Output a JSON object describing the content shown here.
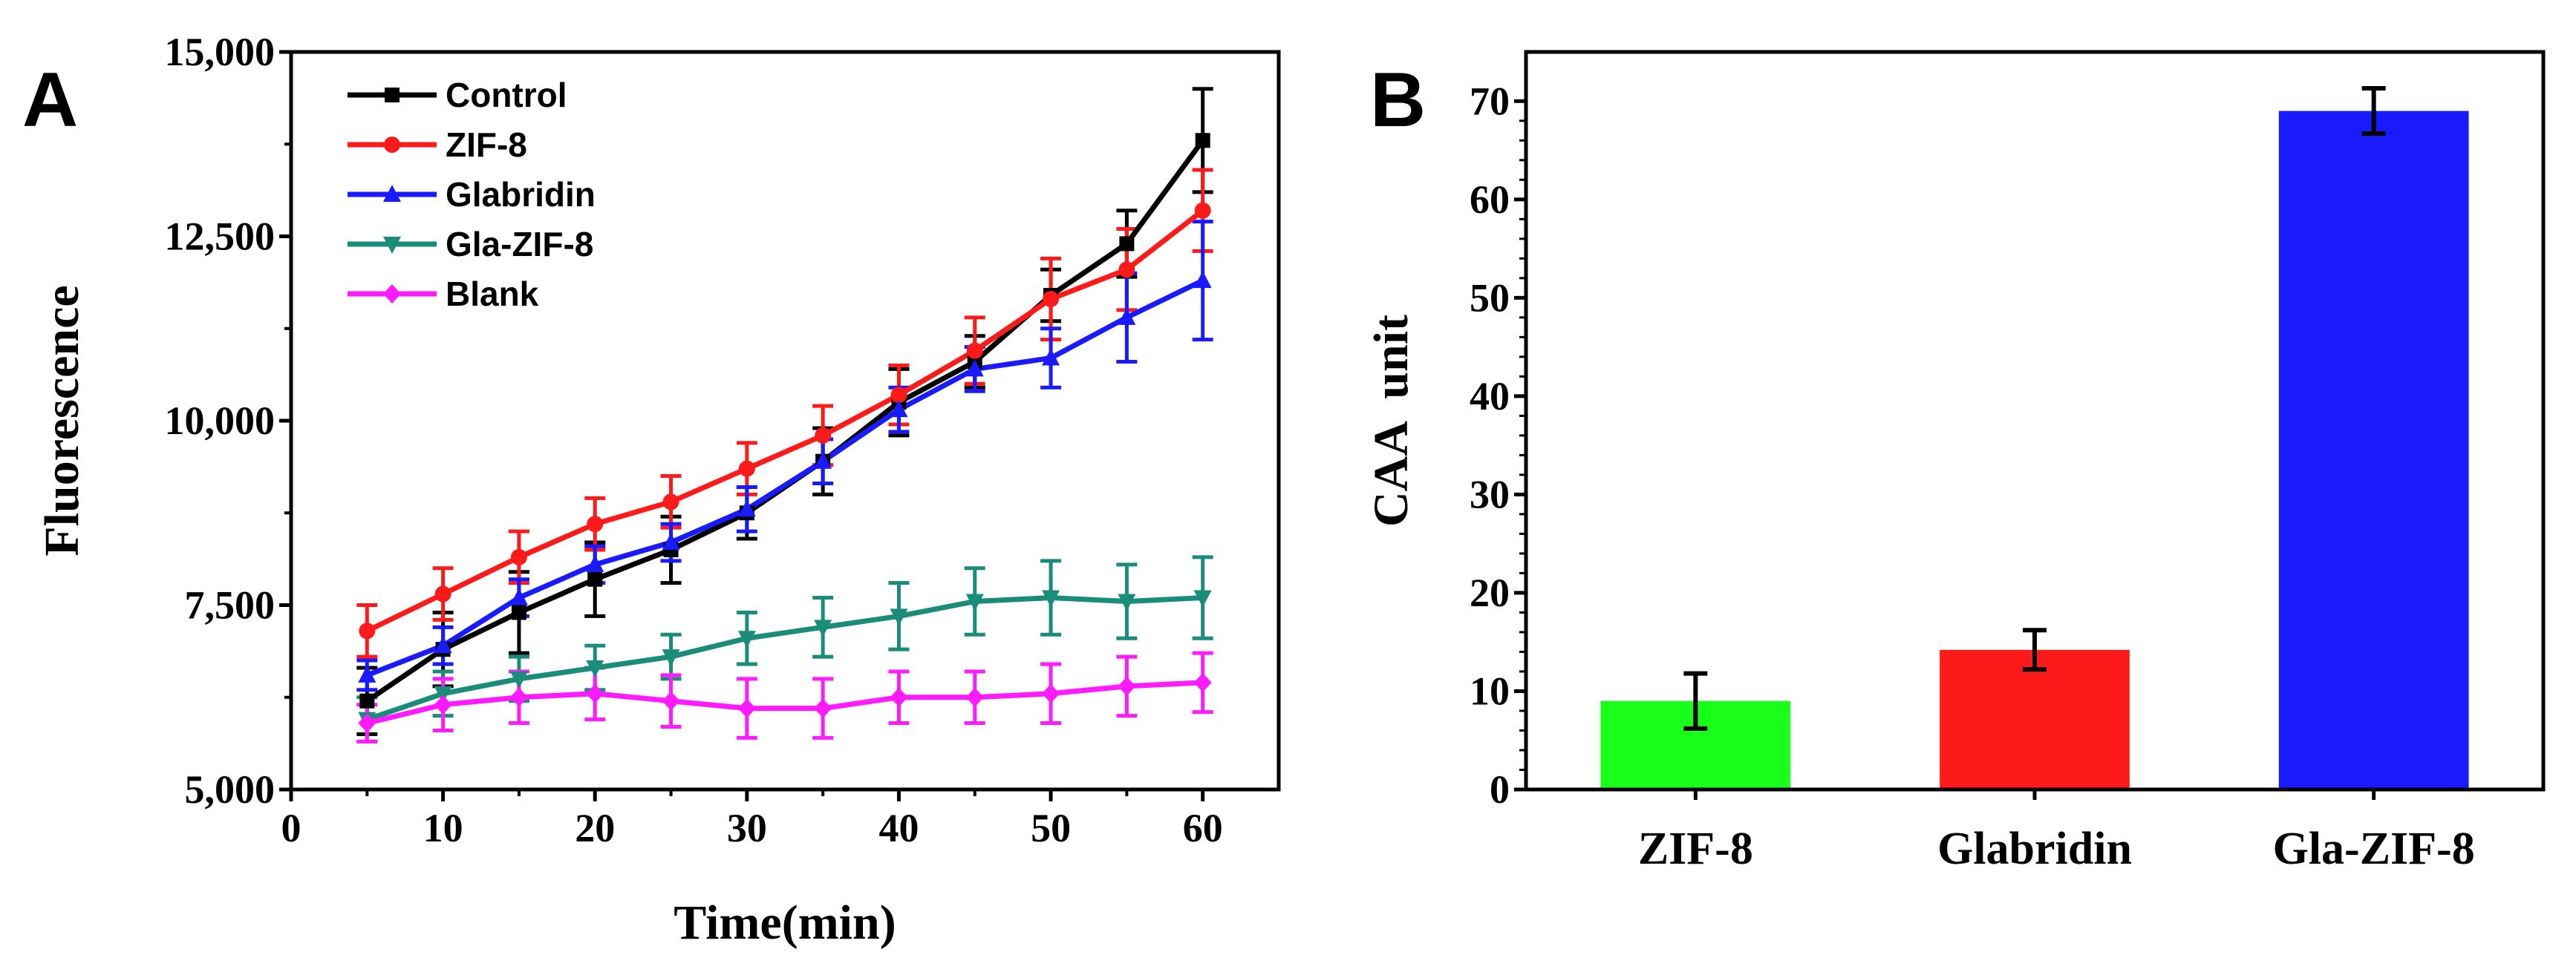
{
  "chart_data": [
    {
      "panel": "A",
      "type": "line",
      "title": "",
      "xlabel": "Time(min)",
      "ylabel": "Fluorescence",
      "xlim": [
        0,
        65
      ],
      "ylim": [
        5000,
        15000
      ],
      "xticks": [
        0,
        10,
        20,
        30,
        40,
        50,
        60
      ],
      "xtick_labels": [
        "0",
        "10",
        "20",
        "30",
        "40",
        "50",
        "60"
      ],
      "yticks": [
        5000,
        7500,
        10000,
        12500,
        15000
      ],
      "ytick_labels": [
        "5,000",
        "7,500",
        "10,000",
        "12,500",
        "15,000"
      ],
      "legend_position": "top-left",
      "x": [
        5,
        10,
        15,
        20,
        25,
        30,
        35,
        40,
        45,
        50,
        55,
        60
      ],
      "series": [
        {
          "name": "Control",
          "color": "#000000",
          "marker": "square",
          "values": [
            6200,
            6900,
            7400,
            7850,
            8250,
            8750,
            9450,
            10250,
            10800,
            11700,
            12400,
            13800
          ],
          "errors": [
            450,
            500,
            550,
            500,
            450,
            350,
            450,
            450,
            350,
            350,
            450,
            700
          ]
        },
        {
          "name": "ZIF-8",
          "color": "#ff1a1a",
          "marker": "circle",
          "values": [
            7150,
            7650,
            8150,
            8600,
            8900,
            9350,
            9800,
            10350,
            10950,
            11650,
            12050,
            12850
          ],
          "errors": [
            350,
            350,
            350,
            350,
            350,
            350,
            400,
            400,
            450,
            550,
            550,
            550
          ]
        },
        {
          "name": "Glabridin",
          "color": "#1a1aff",
          "marker": "triangle-up",
          "values": [
            6550,
            6950,
            7600,
            8050,
            8350,
            8800,
            9450,
            10150,
            10700,
            10850,
            11400,
            11900
          ],
          "errors": [
            200,
            250,
            250,
            250,
            250,
            300,
            300,
            300,
            300,
            400,
            600,
            800
          ]
        },
        {
          "name": "Gla-ZIF-8",
          "color": "#1a8c7a",
          "marker": "triangle-down",
          "values": [
            5950,
            6300,
            6500,
            6650,
            6800,
            7050,
            7200,
            7350,
            7550,
            7600,
            7550,
            7600
          ],
          "errors": [
            300,
            300,
            300,
            300,
            300,
            350,
            400,
            450,
            450,
            500,
            500,
            550
          ]
        },
        {
          "name": "Blank",
          "color": "#ff1aff",
          "marker": "diamond",
          "values": [
            5900,
            6150,
            6250,
            6300,
            6200,
            6100,
            6100,
            6250,
            6250,
            6300,
            6400,
            6450
          ],
          "errors": [
            250,
            350,
            350,
            350,
            350,
            400,
            400,
            350,
            350,
            400,
            400,
            400
          ]
        }
      ]
    },
    {
      "panel": "B",
      "type": "bar",
      "title": "",
      "xlabel": "",
      "ylabel": "CAA  unit",
      "ylim": [
        0,
        75
      ],
      "yticks": [
        0,
        10,
        20,
        30,
        40,
        50,
        60,
        70
      ],
      "ytick_labels": [
        "0",
        "10",
        "20",
        "30",
        "40",
        "50",
        "60",
        "70"
      ],
      "categories": [
        "ZIF-8",
        "Glabridin",
        "Gla-ZIF-8"
      ],
      "values": [
        9,
        14.2,
        69
      ],
      "errors": [
        2.8,
        2.0,
        2.3
      ],
      "colors": [
        "#1aff1a",
        "#ff1a1a",
        "#1a1aff"
      ]
    }
  ]
}
